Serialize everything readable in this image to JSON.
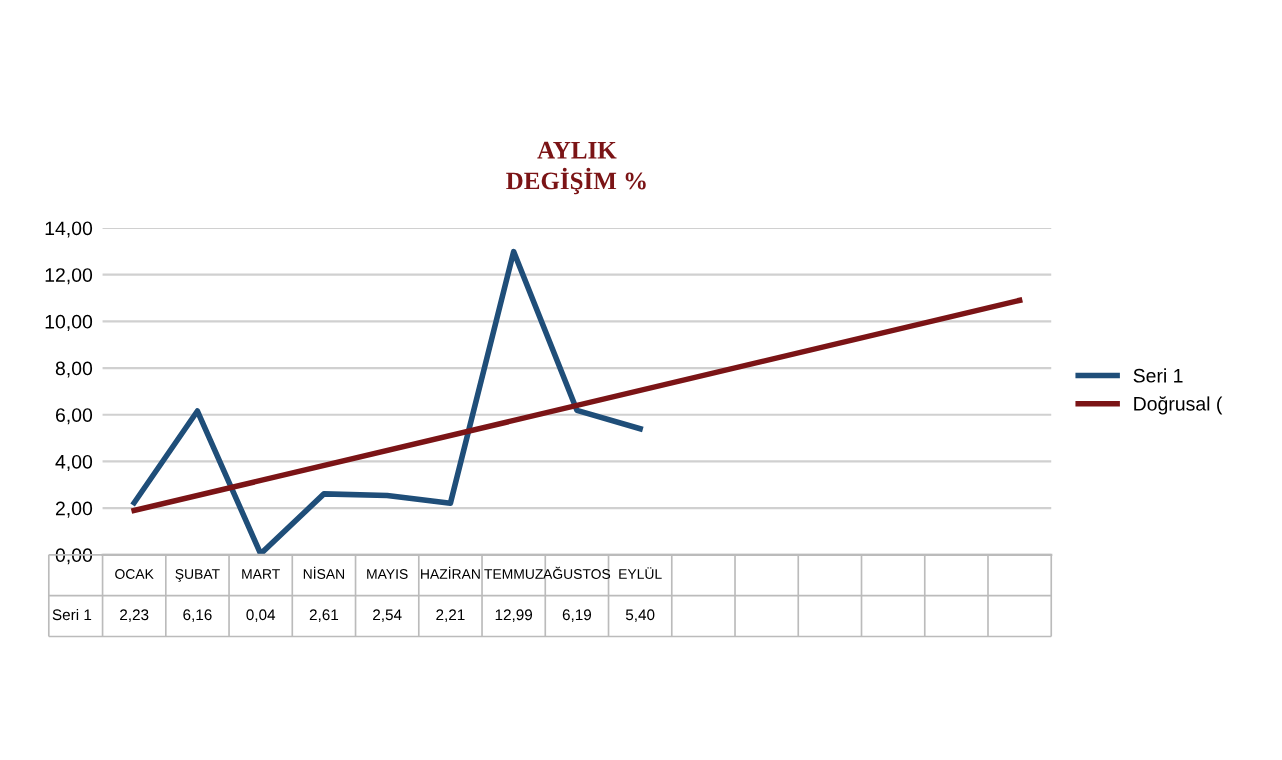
{
  "chart_data": {
    "type": "line",
    "title": "AYLIK\nDEGİŞİM %",
    "categories": [
      "OCAK",
      "ŞUBAT",
      "MART",
      "NİSAN",
      "MAYIS",
      "HAZİRAN",
      "TEMMUZ",
      "AĞUSTOS",
      "EYLÜL",
      null,
      null,
      null,
      null,
      null,
      null
    ],
    "series": [
      {
        "name": "Seri 1",
        "color": "#1f4e79",
        "values": [
          2.23,
          6.16,
          0.04,
          2.61,
          2.54,
          2.21,
          12.99,
          6.19,
          5.4,
          null,
          null,
          null,
          null,
          null,
          null
        ],
        "value_labels": [
          "2,23",
          "6,16",
          "0,04",
          "2,61",
          "2,54",
          "2,21",
          "12,99",
          "6,19",
          "5,40",
          null,
          null,
          null,
          null,
          null,
          null
        ]
      },
      {
        "name": "Doğrusal (",
        "color": "#7b1416",
        "values": [
          1.9,
          null,
          null,
          null,
          null,
          null,
          null,
          null,
          null,
          null,
          null,
          null,
          null,
          null,
          10.9
        ]
      }
    ],
    "ylim": [
      0,
      14
    ],
    "yticks": [
      {
        "value": 0,
        "label": "0,00"
      },
      {
        "value": 2,
        "label": "2,00"
      },
      {
        "value": 4,
        "label": "4,00"
      },
      {
        "value": 6,
        "label": "6,00"
      },
      {
        "value": 8,
        "label": "8,00"
      },
      {
        "value": 10,
        "label": "10,00"
      },
      {
        "value": 12,
        "label": "12,00"
      },
      {
        "value": 14,
        "label": "14,00"
      }
    ],
    "grid": "y",
    "legend": "right",
    "marker": "none",
    "line_style": "solid"
  }
}
